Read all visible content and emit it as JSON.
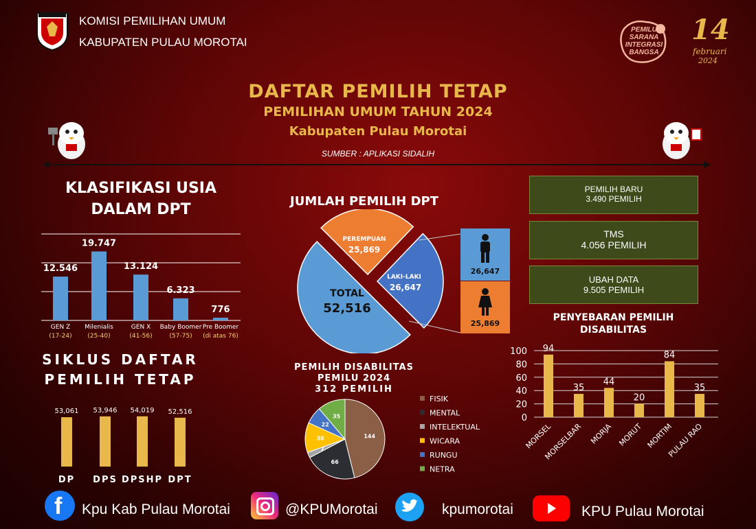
{
  "header": {
    "org_line1": "KOMISI PEMILIHAN UMUM",
    "org_line2": "KABUPATEN PULAU MOROTAI",
    "badge_text": "PEMILU SARANA INTEGRASI BANGSA",
    "date_number": "14",
    "date_month": "februari",
    "date_year": "2024"
  },
  "title": {
    "line1": "DAFTAR PEMILIH TETAP",
    "line2": "PEMILIHAN UMUM TAHUN 2024",
    "line3": "Kabupaten Pulau Morotai",
    "source": "SUMBER : APLIKASI SIDALIH"
  },
  "sections": {
    "usia_title_1": "KLASIFIKASI USIA",
    "usia_title_2": "DALAM DPT",
    "siklus_title_1": "SIKLUS DAFTAR",
    "siklus_title_2": "PEMILIH TETAP",
    "jumlah_title": "JUMLAH PEMILIH DPT",
    "disab_title_1": "PEMILIH DISABILITAS",
    "disab_title_2": "PEMILU 2024",
    "disab_title_3": "312 PEMILIH",
    "sebaran_title_1": "PENYEBARAN PEMILIH",
    "sebaran_title_2": "DISABILITAS"
  },
  "info_boxes": [
    {
      "label": "PEMILIH BARU",
      "value": "3.490 PEMILIH"
    },
    {
      "label": "TMS",
      "value": "4.056 PEMILIH"
    },
    {
      "label": "UBAH DATA",
      "value": "9.505 PEMILIH"
    }
  ],
  "gender_panel": {
    "male_value": "26,647",
    "female_value": "25,869"
  },
  "colors": {
    "gold": "#e8b84a",
    "bar_blue": "#5b9bd5",
    "pie_orange": "#ed7d31",
    "pie_blue": "#4472c4",
    "pie_total": "#5b9bd5",
    "green_box": "#3e4a1a"
  },
  "chart_data": [
    {
      "type": "bar",
      "name": "usia",
      "categories": [
        "GEN Z",
        "Milenialis",
        "GEN X",
        "Baby Boomer",
        "Pre Boomer"
      ],
      "sublabels": [
        "(17-24)",
        "(25-40)",
        "(41-56)",
        "(57-75)",
        "(di atas 76)"
      ],
      "value_labels": [
        "12.546",
        "19.747",
        "13.124",
        "6.323",
        "776"
      ],
      "values": [
        12546,
        19747,
        13124,
        6323,
        776
      ],
      "ylim": [
        0,
        22000
      ]
    },
    {
      "type": "bar",
      "name": "siklus",
      "categories": [
        "DP",
        "DPS",
        "DPSHP",
        "DPT"
      ],
      "value_labels": [
        "53,061",
        "53,946",
        "54,019",
        "52,516"
      ],
      "values": [
        53061,
        53946,
        54019,
        52516
      ],
      "ylim": [
        0,
        60000
      ]
    },
    {
      "type": "pie",
      "name": "jumlah",
      "slices": [
        {
          "label": "PEREMPUAN",
          "value_label": "25,869",
          "value": 25869
        },
        {
          "label": "LAKI-LAKI",
          "value_label": "26,647",
          "value": 26647
        },
        {
          "label": "TOTAL",
          "value_label": "52,516",
          "value": 52516
        }
      ]
    },
    {
      "type": "pie",
      "name": "disabilitas",
      "slices": [
        {
          "label": "FISIK",
          "value": 144,
          "color": "#8b5e46"
        },
        {
          "label": "MENTAL",
          "value": 66,
          "color": "#2b2d33"
        },
        {
          "label": "INTELEKTUAL",
          "value": 7,
          "color": "#a5a5a5"
        },
        {
          "label": "WICARA",
          "value": 38,
          "color": "#ffc000"
        },
        {
          "label": "RUNGU",
          "value": 22,
          "color": "#4472c4"
        },
        {
          "label": "NETRA",
          "value": 35,
          "color": "#70ad47"
        }
      ]
    },
    {
      "type": "bar",
      "name": "sebaran",
      "categories": [
        "MORSEL",
        "MORSELBAR",
        "MORJA",
        "MORUT",
        "MORTIM",
        "PULAU RAO"
      ],
      "values": [
        94,
        35,
        44,
        20,
        84,
        35
      ],
      "yticks": [
        "0",
        "20",
        "40",
        "60",
        "80",
        "100"
      ],
      "ylim": [
        0,
        100
      ],
      "grid": true
    }
  ],
  "social": [
    {
      "icon": "facebook-icon",
      "label": "Kpu Kab Pulau Morotai"
    },
    {
      "icon": "instagram-icon",
      "label": "@KPUMorotai"
    },
    {
      "icon": "twitter-icon",
      "label": "kpumorotai"
    },
    {
      "icon": "youtube-icon",
      "label": "KPU Pulau Morotai"
    }
  ]
}
